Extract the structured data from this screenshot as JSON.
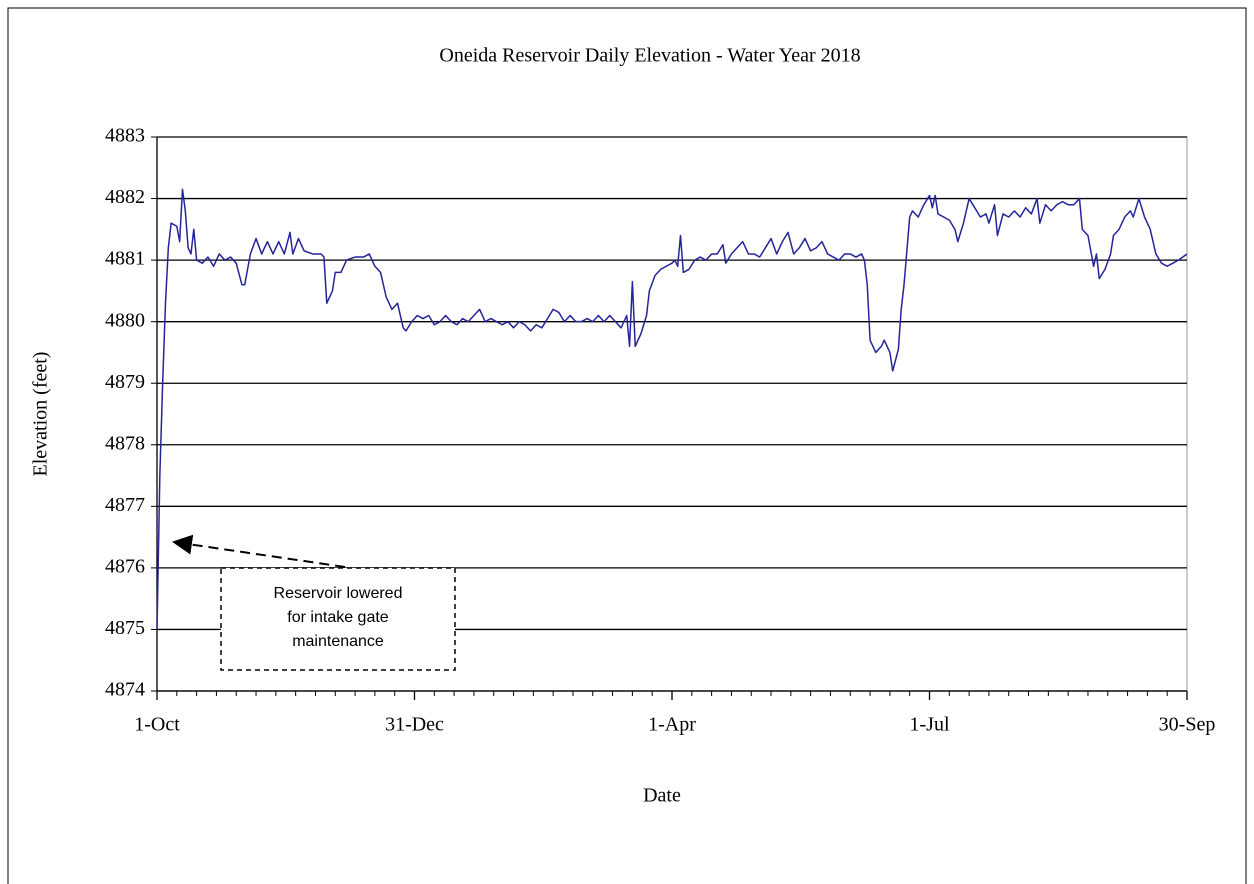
{
  "chart_data": {
    "type": "line",
    "title": "Oneida Reservoir  Daily Elevation  - Water Year  2018",
    "xlabel": "Date",
    "ylabel": "Elevation  (feet)",
    "annotation": [
      "Reservoir lowered",
      "for intake gate",
      "maintenance"
    ],
    "xlim": [
      0,
      364
    ],
    "xticks": [
      {
        "value": 0,
        "label": "1-Oct"
      },
      {
        "value": 91,
        "label": "31-Dec"
      },
      {
        "value": 182,
        "label": "1-Apr"
      },
      {
        "value": 273,
        "label": "1-Jul"
      },
      {
        "value": 364,
        "label": "30-Sep"
      }
    ],
    "xminorticks": [
      7,
      14,
      21,
      28,
      35,
      42,
      49,
      56,
      63,
      70,
      77,
      84,
      98,
      105,
      112,
      119,
      126,
      133,
      140,
      147,
      154,
      161,
      168,
      175,
      189,
      196,
      203,
      210,
      217,
      224,
      231,
      238,
      245,
      252,
      259,
      266,
      280,
      287,
      294,
      301,
      308,
      315,
      322,
      329,
      336,
      343,
      350,
      357
    ],
    "ylim": [
      4874,
      4883
    ],
    "yticks": [
      4874,
      4875,
      4876,
      4877,
      4878,
      4879,
      4880,
      4881,
      4882,
      4883
    ],
    "grid": true,
    "x": [
      0,
      1,
      2,
      3,
      4,
      5,
      7,
      8,
      9,
      10,
      11,
      12,
      13,
      14,
      16,
      18,
      20,
      22,
      24,
      26,
      28,
      30,
      31,
      33,
      35,
      37,
      39,
      41,
      43,
      45,
      47,
      48,
      50,
      52,
      55,
      58,
      59,
      60,
      62,
      63,
      65,
      67,
      70,
      73,
      75,
      77,
      79,
      81,
      83,
      85,
      87,
      88,
      90,
      92,
      94,
      96,
      98,
      100,
      102,
      104,
      106,
      108,
      110,
      112,
      114,
      116,
      118,
      120,
      122,
      124,
      126,
      128,
      130,
      132,
      134,
      136,
      138,
      140,
      142,
      144,
      146,
      148,
      150,
      152,
      154,
      156,
      158,
      160,
      162,
      164,
      166,
      167,
      168,
      169,
      171,
      173,
      174,
      176,
      178,
      180,
      182,
      183,
      184,
      185,
      186,
      188,
      190,
      192,
      194,
      196,
      198,
      200,
      201,
      203,
      205,
      207,
      209,
      211,
      213,
      215,
      217,
      219,
      221,
      223,
      225,
      227,
      229,
      231,
      233,
      235,
      237,
      239,
      241,
      243,
      245,
      247,
      249,
      250,
      251,
      252,
      254,
      256,
      257,
      259,
      260,
      262,
      263,
      264,
      266,
      267,
      269,
      271,
      273,
      274,
      275,
      276,
      278,
      280,
      282,
      283,
      285,
      287,
      289,
      291,
      293,
      294,
      296,
      297,
      299,
      301,
      303,
      305,
      307,
      309,
      311,
      312,
      314,
      316,
      318,
      320,
      322,
      324,
      326,
      327,
      329,
      331,
      332,
      333,
      335,
      337,
      338,
      340,
      342,
      344,
      345,
      347,
      349,
      351,
      353,
      355,
      357,
      359,
      361,
      364
    ],
    "series": [
      {
        "name": "Elevation",
        "color": "#25259a",
        "values": [
          4875,
          4877.5,
          4879,
          4880.3,
          4881.2,
          4881.6,
          4881.55,
          4881.3,
          4882.15,
          4881.8,
          4881.2,
          4881.1,
          4881.5,
          4881.0,
          4880.95,
          4881.05,
          4880.9,
          4881.1,
          4881.0,
          4881.05,
          4880.95,
          4880.6,
          4880.6,
          4881.1,
          4881.35,
          4881.1,
          4881.3,
          4881.1,
          4881.3,
          4881.1,
          4881.45,
          4881.1,
          4881.35,
          4881.15,
          4881.1,
          4881.1,
          4881.05,
          4880.3,
          4880.5,
          4880.8,
          4880.8,
          4881.0,
          4881.05,
          4881.05,
          4881.1,
          4880.9,
          4880.8,
          4880.4,
          4880.2,
          4880.3,
          4879.9,
          4879.85,
          4880.0,
          4880.1,
          4880.05,
          4880.1,
          4879.95,
          4880.0,
          4880.1,
          4880.0,
          4879.95,
          4880.05,
          4880.0,
          4880.1,
          4880.2,
          4880.0,
          4880.05,
          4880.0,
          4879.95,
          4880.0,
          4879.9,
          4880.0,
          4879.95,
          4879.85,
          4879.95,
          4879.9,
          4880.05,
          4880.2,
          4880.15,
          4880.0,
          4880.1,
          4880.0,
          4880.0,
          4880.05,
          4880.0,
          4880.1,
          4880.0,
          4880.1,
          4880.0,
          4879.9,
          4880.1,
          4879.6,
          4880.65,
          4879.6,
          4879.8,
          4880.1,
          4880.5,
          4880.75,
          4880.85,
          4880.9,
          4880.95,
          4881.0,
          4880.9,
          4881.4,
          4880.8,
          4880.85,
          4881.0,
          4881.05,
          4881.0,
          4881.1,
          4881.1,
          4881.25,
          4880.95,
          4881.1,
          4881.2,
          4881.3,
          4881.1,
          4881.1,
          4881.05,
          4881.2,
          4881.35,
          4881.1,
          4881.3,
          4881.45,
          4881.1,
          4881.2,
          4881.35,
          4881.15,
          4881.2,
          4881.3,
          4881.1,
          4881.05,
          4881.0,
          4881.1,
          4881.1,
          4881.05,
          4881.1,
          4881.0,
          4880.6,
          4879.7,
          4879.5,
          4879.6,
          4879.7,
          4879.5,
          4879.2,
          4879.55,
          4880.2,
          4880.6,
          4881.7,
          4881.8,
          4881.7,
          4881.9,
          4882.05,
          4881.85,
          4882.05,
          4881.75,
          4881.7,
          4881.65,
          4881.5,
          4881.3,
          4881.6,
          4882.0,
          4881.85,
          4881.7,
          4881.75,
          4881.6,
          4881.9,
          4881.4,
          4881.75,
          4881.7,
          4881.8,
          4881.7,
          4881.85,
          4881.75,
          4882.0,
          4881.6,
          4881.9,
          4881.8,
          4881.9,
          4881.95,
          4881.9,
          4881.9,
          4882.0,
          4881.5,
          4881.4,
          4880.9,
          4881.1,
          4880.7,
          4880.85,
          4881.1,
          4881.4,
          4881.5,
          4881.7,
          4881.8,
          4881.7,
          4882.0,
          4881.7,
          4881.5,
          4881.1,
          4880.95,
          4880.9,
          4880.95,
          4881.0,
          4881.1
        ]
      }
    ]
  }
}
